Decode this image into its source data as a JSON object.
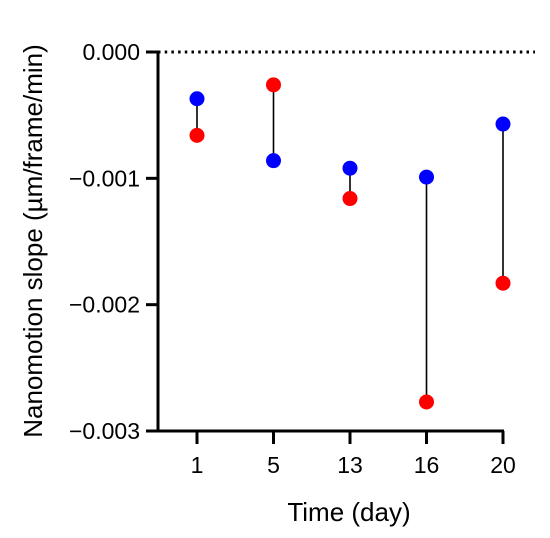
{
  "chart_data": {
    "type": "scatter",
    "title": "",
    "xlabel": "Time (day)",
    "ylabel": "Nanomotion slope (µm/frame/min)",
    "categories": [
      "1",
      "5",
      "13",
      "16",
      "20"
    ],
    "yticks": [
      "0.000",
      "−0.001",
      "−0.002",
      "−0.003"
    ],
    "ylim": [
      -0.003,
      0.0
    ],
    "reference_line": {
      "y": 0.0,
      "style": "dotted"
    },
    "connectors": true,
    "series": [
      {
        "color": "#0000ff",
        "values": [
          -0.00037,
          -0.00086,
          -0.00092,
          -0.00099,
          -0.00057
        ]
      },
      {
        "color": "#ff0000",
        "values": [
          -0.00066,
          -0.00026,
          -0.00116,
          -0.00277,
          -0.00183
        ]
      }
    ]
  }
}
